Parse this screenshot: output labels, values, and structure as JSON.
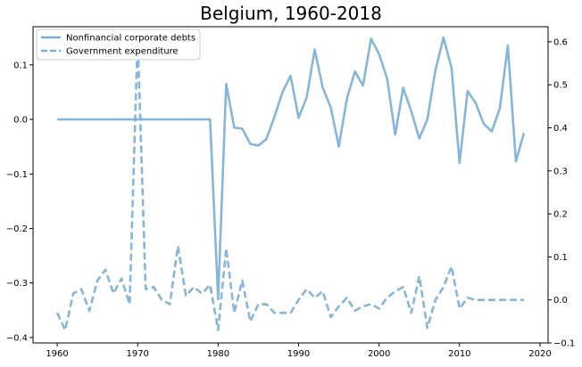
{
  "chart_data": {
    "type": "line",
    "title": "Belgium, 1960-2018",
    "xlabel": "",
    "ylabel": "",
    "legend_placement": "top-left",
    "grid": false,
    "x_range": [
      1957,
      2021
    ],
    "x_ticks": [
      1960,
      1970,
      1980,
      1990,
      2000,
      2010,
      2020
    ],
    "left_axis": {
      "range": [
        -0.41,
        0.17
      ],
      "ticks": [
        0.1,
        0.0,
        -0.1,
        -0.2,
        -0.3,
        -0.4
      ],
      "tick_labels": [
        "0.1",
        "0.0",
        "−0.1",
        "−0.2",
        "−0.3",
        "−0.4"
      ]
    },
    "right_axis": {
      "range": [
        -0.1,
        0.635
      ],
      "ticks": [
        0.6,
        0.5,
        0.4,
        0.3,
        0.2,
        0.1,
        0.0,
        -0.1
      ],
      "tick_labels": [
        "0.6",
        "0.5",
        "0.4",
        "0.3",
        "0.2",
        "0.1",
        "0.0",
        "−0.1"
      ]
    },
    "color": "#7aaed4",
    "series": [
      {
        "name": "Nonfinancial corporate debts",
        "axis": "left",
        "style": "solid",
        "x": [
          1960,
          1961,
          1962,
          1963,
          1964,
          1965,
          1966,
          1967,
          1968,
          1969,
          1970,
          1971,
          1972,
          1973,
          1974,
          1975,
          1976,
          1977,
          1978,
          1979,
          1980,
          1981,
          1982,
          1983,
          1984,
          1985,
          1986,
          1987,
          1988,
          1989,
          1990,
          1991,
          1992,
          1993,
          1994,
          1995,
          1996,
          1997,
          1998,
          1999,
          2000,
          2001,
          2002,
          2003,
          2004,
          2005,
          2006,
          2007,
          2008,
          2009,
          2010,
          2011,
          2012,
          2013,
          2014,
          2015,
          2016,
          2017,
          2018
        ],
        "values": [
          0,
          0,
          0,
          0,
          0,
          0,
          0,
          0,
          0,
          0,
          0,
          0,
          0,
          0,
          0,
          0,
          0,
          0,
          0,
          0,
          -0.33,
          0.065,
          -0.015,
          -0.017,
          -0.045,
          -0.048,
          -0.036,
          0.005,
          0.05,
          0.08,
          0.003,
          0.04,
          0.128,
          0.058,
          0.022,
          -0.05,
          0.038,
          0.088,
          0.062,
          0.148,
          0.12,
          0.075,
          -0.028,
          0.058,
          0.015,
          -0.035,
          0.0,
          0.09,
          0.15,
          0.095,
          -0.08,
          0.052,
          0.03,
          -0.008,
          -0.022,
          0.02,
          0.135,
          -0.077,
          -0.025
        ]
      },
      {
        "name": "Government expenditure",
        "axis": "right",
        "style": "dashed",
        "x": [
          1960,
          1961,
          1962,
          1963,
          1964,
          1965,
          1966,
          1967,
          1968,
          1969,
          1970,
          1971,
          1972,
          1973,
          1974,
          1975,
          1976,
          1977,
          1978,
          1979,
          1980,
          1981,
          1982,
          1983,
          1984,
          1985,
          1986,
          1987,
          1988,
          1989,
          1990,
          1991,
          1992,
          1993,
          1994,
          1995,
          1996,
          1997,
          1998,
          1999,
          2000,
          2001,
          2002,
          2003,
          2004,
          2005,
          2006,
          2007,
          2008,
          2009,
          2010,
          2011,
          2012,
          2013,
          2014,
          2015,
          2016,
          2017,
          2018
        ],
        "values": [
          -0.03,
          -0.07,
          0.015,
          0.025,
          -0.025,
          0.045,
          0.07,
          0.015,
          0.05,
          -0.01,
          0.61,
          0.025,
          0.03,
          0.0,
          -0.01,
          0.125,
          0.01,
          0.03,
          0.015,
          0.035,
          -0.07,
          0.12,
          -0.03,
          0.045,
          -0.05,
          -0.01,
          -0.01,
          -0.03,
          -0.03,
          -0.03,
          0.0,
          0.025,
          0.005,
          0.02,
          -0.04,
          -0.015,
          0.005,
          -0.025,
          -0.015,
          -0.01,
          -0.02,
          0.005,
          0.02,
          0.03,
          -0.03,
          0.055,
          -0.065,
          0.0,
          0.03,
          0.078,
          -0.02,
          0.005,
          0.0,
          0.0,
          0.0,
          0.0,
          0.0,
          0.0,
          0.0
        ]
      }
    ]
  }
}
